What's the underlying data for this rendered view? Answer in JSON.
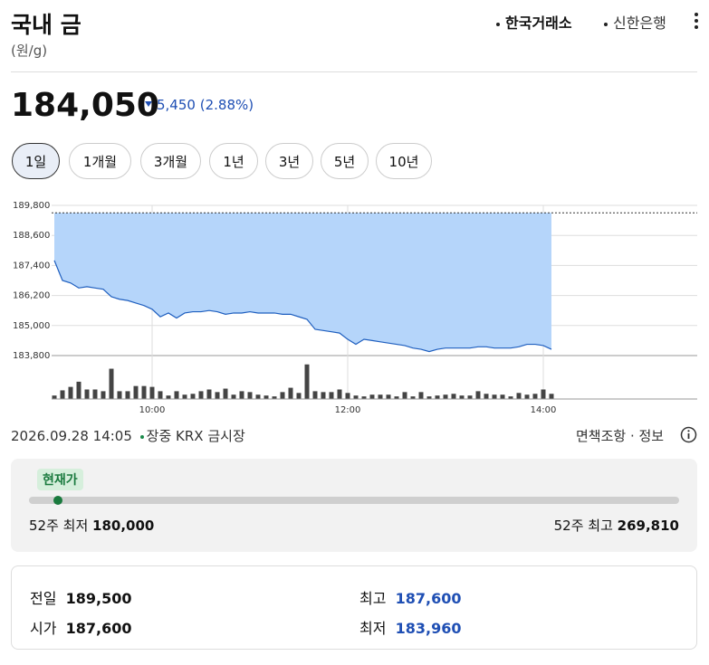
{
  "header": {
    "title": "국내 금",
    "unit": "(원/g)",
    "sources": [
      "한국거래소",
      "신한은행"
    ]
  },
  "price": {
    "current": {
      "value": 184050,
      "label": "184,050"
    },
    "change": "5,450",
    "change_percent": "(2.88%)"
  },
  "periods": [
    "1일",
    "1개월",
    "3개월",
    "1년",
    "3년",
    "5년",
    "10년"
  ],
  "chart_data": {
    "type": "area",
    "x": [
      "09:00",
      "09:05",
      "09:10",
      "09:15",
      "09:20",
      "09:25",
      "09:30",
      "09:35",
      "09:40",
      "09:45",
      "09:50",
      "09:55",
      "10:00",
      "10:05",
      "10:10",
      "10:15",
      "10:20",
      "10:25",
      "10:30",
      "10:35",
      "10:40",
      "10:45",
      "10:50",
      "10:55",
      "11:00",
      "11:05",
      "11:10",
      "11:15",
      "11:20",
      "11:25",
      "11:30",
      "11:35",
      "11:40",
      "11:45",
      "11:50",
      "11:55",
      "12:00",
      "12:05",
      "12:10",
      "12:15",
      "12:20",
      "12:25",
      "12:30",
      "12:35",
      "12:40",
      "12:45",
      "12:50",
      "12:55",
      "13:00",
      "13:05",
      "13:10",
      "13:15",
      "13:20",
      "13:25",
      "13:30",
      "13:35",
      "13:40",
      "13:45",
      "13:50",
      "13:55",
      "14:00",
      "14:05"
    ],
    "series": [
      {
        "color": "#1f5fbf",
        "values": [
          187600,
          186800,
          186700,
          186500,
          186550,
          186500,
          186450,
          186150,
          186050,
          186000,
          185900,
          185800,
          185650,
          185350,
          185500,
          185300,
          185500,
          185550,
          185550,
          185600,
          185550,
          185450,
          185500,
          185500,
          185550,
          185500,
          185500,
          185500,
          185450,
          185450,
          185350,
          185250,
          184850,
          184800,
          184750,
          184700,
          184450,
          184250,
          184450,
          184400,
          184350,
          184300,
          184250,
          184200,
          184100,
          184050,
          183960,
          184050,
          184100,
          184100,
          184100,
          184100,
          184150,
          184150,
          184100,
          184100,
          184100,
          184150,
          184250,
          184250,
          184200,
          184050
        ]
      }
    ],
    "fill_color": "#b5d5fa",
    "ylim": [
      183800,
      189800
    ],
    "yticks": [
      {
        "value": 183800,
        "label": "183,800"
      },
      {
        "value": 185000,
        "label": "185,000"
      },
      {
        "value": 186200,
        "label": "186,200"
      },
      {
        "value": 187400,
        "label": "187,400"
      },
      {
        "value": 188600,
        "label": "188,600"
      },
      {
        "value": 189800,
        "label": "189,800"
      }
    ],
    "xticks": [
      "10:00",
      "12:00",
      "14:00"
    ],
    "grid": true,
    "volume": {
      "color": "#444444",
      "ylim": [
        0,
        45
      ],
      "values": [
        4,
        10,
        14,
        20,
        11,
        11,
        9,
        35,
        9,
        9,
        15,
        15,
        14,
        9,
        4,
        9,
        5,
        6,
        9,
        11,
        8,
        12,
        5,
        9,
        8,
        5,
        4,
        3,
        8,
        13,
        7,
        40,
        9,
        8,
        8,
        11,
        7,
        4,
        3,
        5,
        5,
        5,
        3,
        8,
        3,
        8,
        3,
        4,
        5,
        6,
        4,
        4,
        9,
        6,
        5,
        5,
        3,
        7,
        5,
        6,
        11,
        6
      ]
    }
  },
  "status": {
    "timestamp": "2026.09.28 14:05",
    "market": "장중 KRX 금시장",
    "links": "면책조항 · 정보"
  },
  "range_52w": {
    "current_label": "현재가",
    "low_label": "52주 최저",
    "low": {
      "value": 180000,
      "label": "180,000"
    },
    "high_label": "52주 최고",
    "high": {
      "value": 269810,
      "label": "269,810"
    }
  },
  "stats": [
    {
      "label": "전일",
      "value": {
        "value": 189500,
        "label": "189,500"
      }
    },
    {
      "label": "시가",
      "value": {
        "value": 187600,
        "label": "187,600"
      }
    },
    {
      "label": "최고",
      "value": {
        "value": 187600,
        "label": "187,600"
      }
    },
    {
      "label": "최저",
      "value": {
        "value": 183960,
        "label": "183,960"
      }
    }
  ]
}
